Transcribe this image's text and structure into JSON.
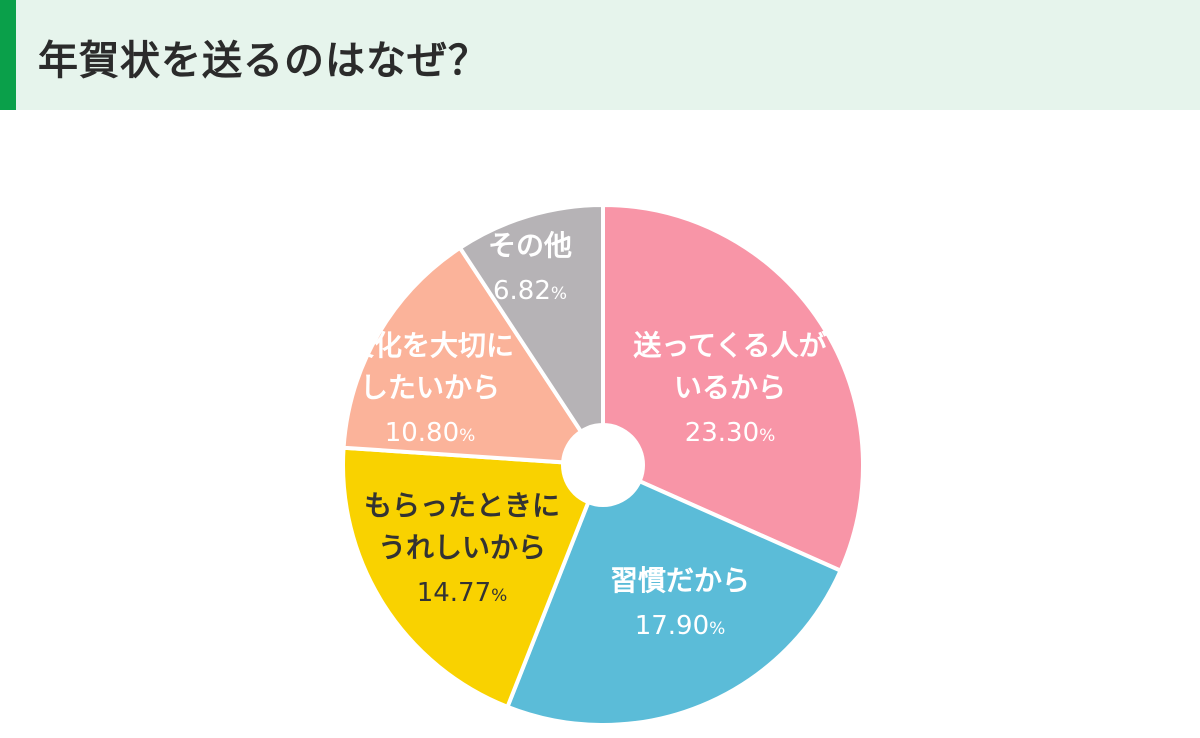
{
  "header": {
    "title": "年賀状を送るのはなぜ？"
  },
  "chart_data": {
    "type": "pie",
    "donut": true,
    "title": "年賀状を送るのはなぜ？",
    "start": "12 o'clock, clockwise",
    "slices": [
      {
        "label": [
          "送ってくる人が",
          "いるから"
        ],
        "value": 23.3,
        "value_label": "23.30",
        "color": "#f895a7",
        "text_color": "#ffffff"
      },
      {
        "label": [
          "習慣だから"
        ],
        "value": 17.9,
        "value_label": "17.90",
        "color": "#5bbcd8",
        "text_color": "#ffffff"
      },
      {
        "label": [
          "もらったときに",
          "うれしいから"
        ],
        "value": 14.77,
        "value_label": "14.77",
        "color": "#f9d200",
        "text_color": "#333333"
      },
      {
        "label": [
          "文化を大切に",
          "したいから"
        ],
        "value": 10.8,
        "value_label": "10.80",
        "color": "#fbb39a",
        "text_color": "#ffffff"
      },
      {
        "label": [
          "その他"
        ],
        "value": 6.82,
        "value_label": "6.82",
        "color": "#b6b3b6",
        "text_color": "#ffffff"
      }
    ],
    "unit": "%"
  }
}
